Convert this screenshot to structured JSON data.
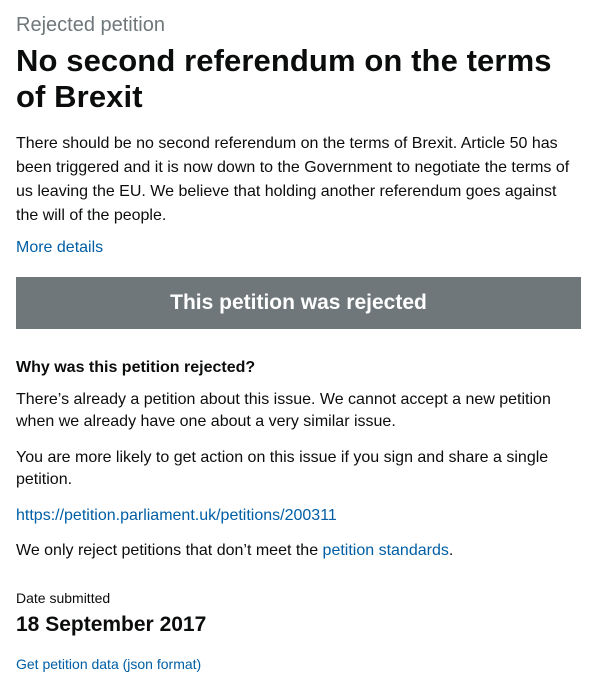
{
  "petition": {
    "status_caption": "Rejected petition",
    "title": "No second referendum on the terms of Brexit",
    "action": "There should be no second referendum on the terms of Brexit. Article 50 has been triggered and it is now down to the Government to negotiate the terms of us leaving the EU. We believe that holding another referendum goes against the will of the people.",
    "more_details_link": "More details"
  },
  "rejection": {
    "banner": "This petition was rejected",
    "reason_heading": "Why was this petition rejected?",
    "reason_paragraph_1": "There’s already a petition about this issue. We cannot accept a new petition when we already have one about a very similar issue.",
    "reason_paragraph_2": "You are more likely to get action on this issue if you sign and share a single petition.",
    "existing_petition_link": "https://petition.parliament.uk/petitions/200311",
    "standards_prefix": "We only reject petitions that don’t meet the ",
    "standards_link": "petition standards",
    "standards_suffix": "."
  },
  "meta": {
    "date_label": "Date submitted",
    "date_value": "18 September 2017",
    "data_link": "Get petition data (json format)"
  },
  "colors": {
    "text": "#0b0c0c",
    "secondary_text": "#6f777b",
    "link": "#005ea5",
    "banner_background": "#6f777b",
    "banner_text": "#ffffff"
  }
}
